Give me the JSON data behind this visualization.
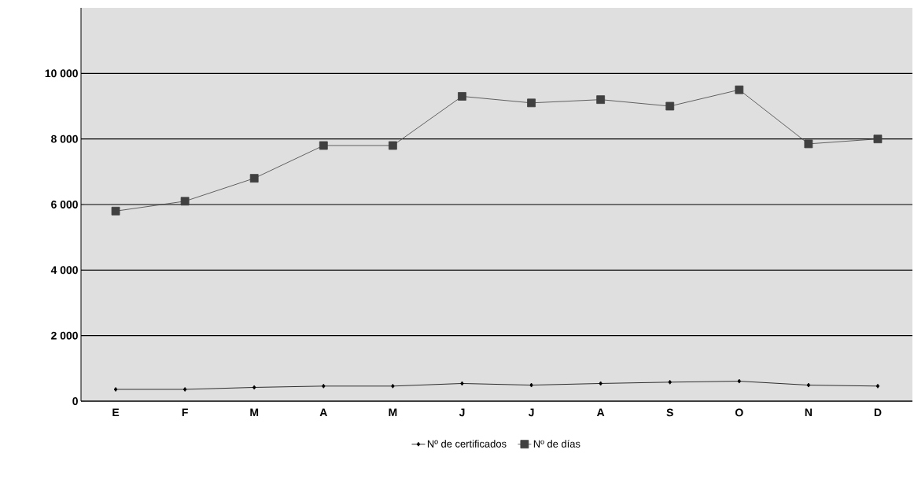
{
  "chart_data": {
    "type": "line",
    "categories": [
      "E",
      "F",
      "M",
      "A",
      "M",
      "J",
      "J",
      "A",
      "S",
      "O",
      "N",
      "D"
    ],
    "series": [
      {
        "name": "Nº de certificados",
        "color": "#000000",
        "marker": "diamond",
        "values": [
          360,
          360,
          420,
          460,
          460,
          540,
          490,
          540,
          580,
          610,
          490,
          460
        ]
      },
      {
        "name": "Nº de días",
        "color": "#404040",
        "marker": "square",
        "values": [
          5800,
          6100,
          6800,
          7800,
          7800,
          9300,
          9100,
          9200,
          9000,
          9500,
          7850,
          8000
        ]
      }
    ],
    "ylim": [
      0,
      12000
    ],
    "yticks": [
      {
        "value": 0,
        "label": "0"
      },
      {
        "value": 2000,
        "label": "2 000"
      },
      {
        "value": 4000,
        "label": "4 000"
      },
      {
        "value": 6000,
        "label": "6 000"
      },
      {
        "value": 8000,
        "label": "8 000"
      },
      {
        "value": 10000,
        "label": "10 000"
      }
    ],
    "grid": "y",
    "legend": "bottom",
    "line_style": "solid"
  }
}
